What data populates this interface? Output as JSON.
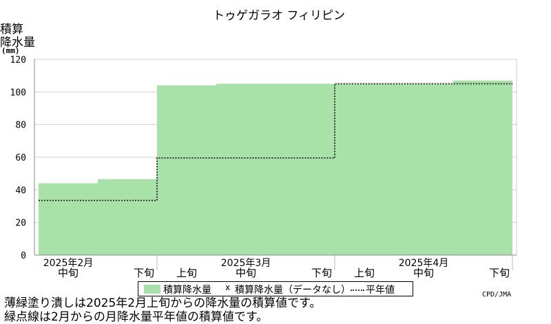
{
  "chart_data": {
    "type": "area",
    "title": "トゥゲガラオ フィリピン",
    "ylabel": [
      "積算",
      "降水量",
      "(mm)"
    ],
    "ylim": [
      0,
      120
    ],
    "yticks": [
      0,
      20,
      40,
      60,
      80,
      100,
      120
    ],
    "grid": true,
    "x_periods": [
      {
        "period": "2月中旬",
        "accumulated": 44,
        "normal": 33.5
      },
      {
        "period": "2月下旬",
        "accumulated": 46.5,
        "normal": 33.5
      },
      {
        "period": "3月上旬",
        "accumulated": 104,
        "normal": 59.5
      },
      {
        "period": "3月中旬",
        "accumulated": 105,
        "normal": 59.5
      },
      {
        "period": "3月下旬",
        "accumulated": 105,
        "normal": 59.5
      },
      {
        "period": "4月上旬",
        "accumulated": 105,
        "normal": 105
      },
      {
        "period": "4月中旬",
        "accumulated": 105,
        "normal": 105
      },
      {
        "period": "4月下旬",
        "accumulated": 107,
        "normal": 105
      }
    ],
    "x_tick_labels": [
      {
        "lines": [
          "2025年2月",
          "中旬"
        ]
      },
      {
        "lines": [
          "",
          "下旬"
        ]
      },
      {
        "lines": [
          "",
          "上旬"
        ]
      },
      {
        "lines": [
          "2025年3月",
          "中旬"
        ]
      },
      {
        "lines": [
          "",
          "下旬"
        ]
      },
      {
        "lines": [
          "",
          "上旬"
        ]
      },
      {
        "lines": [
          "2025年4月",
          "中旬"
        ]
      },
      {
        "lines": [
          "",
          "下旬"
        ]
      }
    ],
    "series": [
      {
        "name": "積算降水量",
        "color": "#a8e2a8",
        "style": "filled-step"
      },
      {
        "name": "積算降水量（データなし）",
        "marker": "x"
      },
      {
        "name": "平年値",
        "color": "#333333",
        "style": "dotted-step"
      }
    ]
  },
  "legend": {
    "label_accum": "積算降水量",
    "marker_nodata": "x",
    "label_nodata": "積算降水量（データなし）",
    "label_normal": "平年値"
  },
  "notes": {
    "line1": "薄緑塗り潰しは2025年2月上旬からの降水量の積算値です。",
    "line2": "緑点線は2月からの月降水量平年値の積算値です。"
  },
  "credit": "CPD/JMA"
}
